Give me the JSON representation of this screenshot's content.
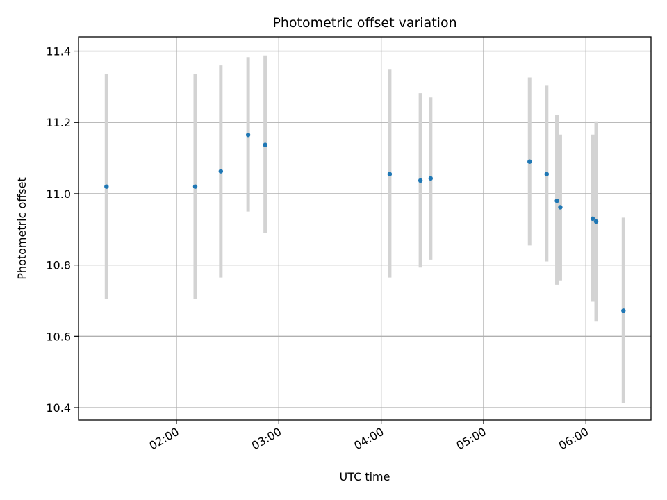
{
  "chart_data": {
    "type": "scatter",
    "title": "Photometric offset variation",
    "xlabel": "UTC time",
    "ylabel": "Photometric offset",
    "x_type": "time",
    "xlim": [
      "01:02:35",
      "06:38:10"
    ],
    "ylim": [
      10.365,
      11.44
    ],
    "xticks": [
      "02:00",
      "03:00",
      "04:00",
      "05:00",
      "06:00"
    ],
    "yticks": [
      "10.4",
      "10.6",
      "10.8",
      "11.0",
      "11.2",
      "11.4"
    ],
    "grid": true,
    "colors": {
      "marker": "#1f77b4",
      "errorbar": "#d3d3d3",
      "grid": "#b0b0b0"
    },
    "points": [
      {
        "x": "01:19",
        "y": 11.02,
        "yerr_low": 10.705,
        "yerr_high": 11.335
      },
      {
        "x": "02:11",
        "y": 11.02,
        "yerr_low": 10.705,
        "yerr_high": 11.335
      },
      {
        "x": "02:26",
        "y": 11.063,
        "yerr_low": 10.765,
        "yerr_high": 11.36
      },
      {
        "x": "02:42",
        "y": 11.165,
        "yerr_low": 10.95,
        "yerr_high": 11.383
      },
      {
        "x": "02:52",
        "y": 11.137,
        "yerr_low": 10.89,
        "yerr_high": 11.388
      },
      {
        "x": "04:05",
        "y": 11.055,
        "yerr_low": 10.765,
        "yerr_high": 11.348
      },
      {
        "x": "04:23",
        "y": 11.037,
        "yerr_low": 10.793,
        "yerr_high": 11.282
      },
      {
        "x": "04:29",
        "y": 11.043,
        "yerr_low": 10.815,
        "yerr_high": 11.27
      },
      {
        "x": "05:27",
        "y": 11.09,
        "yerr_low": 10.855,
        "yerr_high": 11.326
      },
      {
        "x": "05:37",
        "y": 11.055,
        "yerr_low": 10.81,
        "yerr_high": 11.303
      },
      {
        "x": "05:43",
        "y": 10.98,
        "yerr_low": 10.745,
        "yerr_high": 11.22
      },
      {
        "x": "05:45",
        "y": 10.962,
        "yerr_low": 10.757,
        "yerr_high": 11.166
      },
      {
        "x": "06:04",
        "y": 10.93,
        "yerr_low": 10.697,
        "yerr_high": 11.166
      },
      {
        "x": "06:06",
        "y": 10.922,
        "yerr_low": 10.643,
        "yerr_high": 11.203
      },
      {
        "x": "06:22",
        "y": 10.672,
        "yerr_low": 10.413,
        "yerr_high": 10.933
      }
    ]
  }
}
